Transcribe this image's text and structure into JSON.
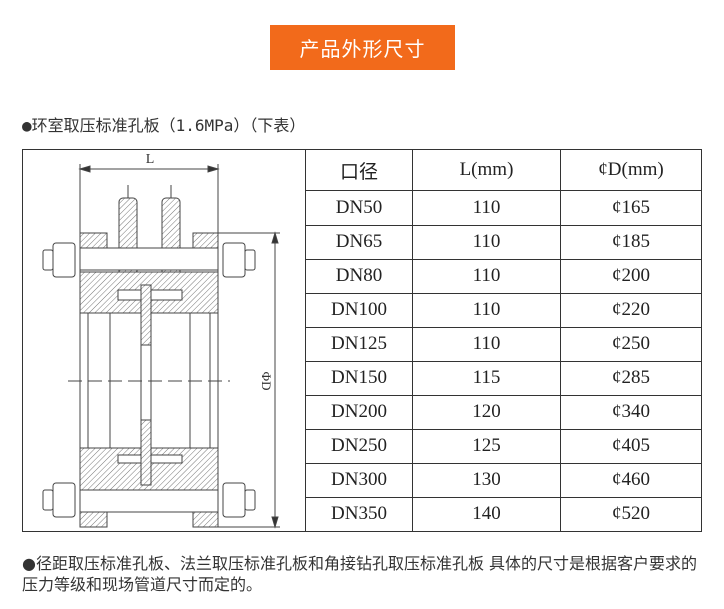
{
  "banner": {
    "title": "产品外形尺寸",
    "color": "#f26a1b"
  },
  "subtitle": "●环室取压标准孔板（1.6MPa）（下表）",
  "drawing": {
    "label_length": "L",
    "label_diameter": "ΦD"
  },
  "table": {
    "headers": [
      "口径",
      "L(mm)",
      "¢D(mm)"
    ],
    "rows": [
      [
        "DN50",
        "110",
        "¢165"
      ],
      [
        "DN65",
        "110",
        "¢185"
      ],
      [
        "DN80",
        "110",
        "¢200"
      ],
      [
        "DN100",
        "110",
        "¢220"
      ],
      [
        "DN125",
        "110",
        "¢250"
      ],
      [
        "DN150",
        "115",
        "¢285"
      ],
      [
        "DN200",
        "120",
        "¢340"
      ],
      [
        "DN250",
        "125",
        "¢405"
      ],
      [
        "DN300",
        "130",
        "¢460"
      ],
      [
        "DN350",
        "140",
        "¢520"
      ]
    ]
  },
  "note": "●径距取压标准孔板、法兰取压标准孔板和角接钻孔取压标准孔板 具体的尺寸是根据客户要求的压力等级和现场管道尺寸而定的。"
}
